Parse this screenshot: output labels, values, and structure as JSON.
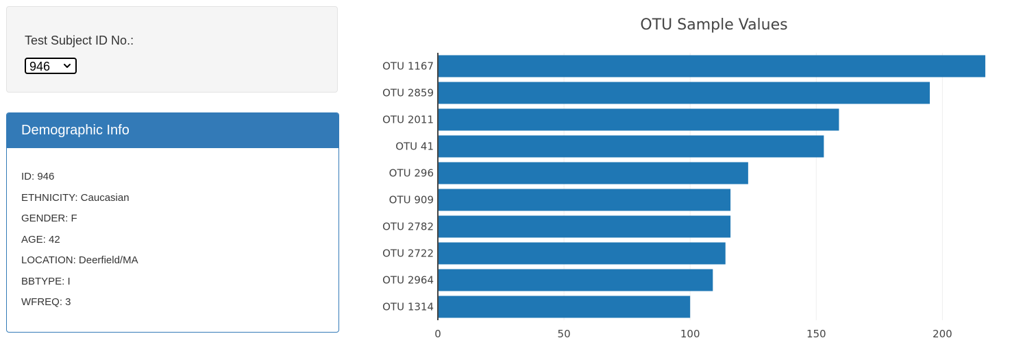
{
  "selector": {
    "label": "Test Subject ID No.:",
    "selected": "946"
  },
  "panel": {
    "title": "Demographic Info",
    "lines": [
      "ID: 946",
      "ETHNICITY: Caucasian",
      "GENDER: F",
      "AGE: 42",
      "LOCATION: Deerfield/MA",
      "BBTYPE: I",
      "WFREQ: 3"
    ]
  },
  "colors": {
    "bar": "#1f77b4",
    "panel_heading": "#337ab7",
    "well_background": "#f5f5f5"
  },
  "chart_data": {
    "type": "bar",
    "orientation": "horizontal",
    "title": "OTU Sample Values",
    "categories": [
      "OTU 1167",
      "OTU 2859",
      "OTU 2011",
      "OTU 41",
      "OTU 296",
      "OTU 909",
      "OTU 2782",
      "OTU 2722",
      "OTU 2964",
      "OTU 1314"
    ],
    "values": [
      217,
      195,
      159,
      153,
      123,
      116,
      116,
      114,
      109,
      100
    ],
    "xlim": [
      0,
      220
    ],
    "xticks": [
      "0",
      "50",
      "100",
      "150",
      "200"
    ],
    "xlabel": "",
    "ylabel": "",
    "grid": "vertical"
  }
}
